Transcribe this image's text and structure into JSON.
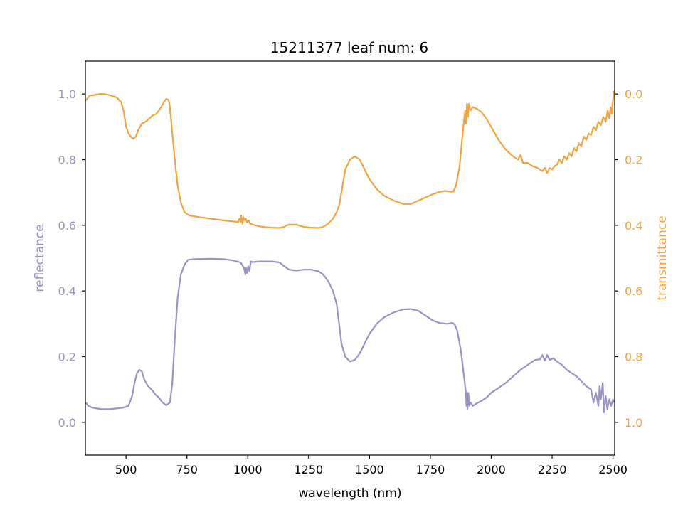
{
  "chart_data": {
    "type": "line",
    "title": "15211377 leaf num: 6",
    "xlabel": "wavelength (nm)",
    "xlim": [
      333,
      2507
    ],
    "xticks": [
      500,
      750,
      1000,
      1250,
      1500,
      1750,
      2000,
      2250,
      2500
    ],
    "left_axis": {
      "label": "reflectance",
      "color": "#9a94c4",
      "ylim": [
        -0.1,
        1.1
      ],
      "ticks": [
        0.0,
        0.2,
        0.4,
        0.6,
        0.8,
        1.0
      ],
      "tick_labels": [
        "0.0",
        "0.2",
        "0.4",
        "0.6",
        "0.8",
        "1.0"
      ]
    },
    "right_axis": {
      "label": "transmittance",
      "color": "#f0a442",
      "ylim": [
        1.1,
        -0.1
      ],
      "ticks": [
        0.0,
        0.2,
        0.4,
        0.6,
        0.8,
        1.0
      ],
      "tick_labels": [
        "0.0",
        "0.2",
        "0.4",
        "0.6",
        "0.8",
        "1.0"
      ]
    },
    "series": [
      {
        "axis": "left",
        "color": "#9a94c4",
        "points": [
          [
            335,
            0.06
          ],
          [
            345,
            0.05
          ],
          [
            360,
            0.045
          ],
          [
            380,
            0.042
          ],
          [
            400,
            0.04
          ],
          [
            430,
            0.04
          ],
          [
            460,
            0.042
          ],
          [
            490,
            0.045
          ],
          [
            510,
            0.05
          ],
          [
            525,
            0.08
          ],
          [
            535,
            0.12
          ],
          [
            545,
            0.15
          ],
          [
            555,
            0.16
          ],
          [
            565,
            0.155
          ],
          [
            575,
            0.13
          ],
          [
            590,
            0.11
          ],
          [
            605,
            0.1
          ],
          [
            620,
            0.085
          ],
          [
            635,
            0.075
          ],
          [
            650,
            0.06
          ],
          [
            665,
            0.052
          ],
          [
            680,
            0.06
          ],
          [
            690,
            0.12
          ],
          [
            700,
            0.25
          ],
          [
            712,
            0.38
          ],
          [
            725,
            0.45
          ],
          [
            740,
            0.48
          ],
          [
            755,
            0.495
          ],
          [
            780,
            0.497
          ],
          [
            850,
            0.498
          ],
          [
            900,
            0.497
          ],
          [
            940,
            0.493
          ],
          [
            970,
            0.487
          ],
          [
            985,
            0.47
          ],
          [
            990,
            0.45
          ],
          [
            993,
            0.47
          ],
          [
            997,
            0.455
          ],
          [
            1002,
            0.475
          ],
          [
            1007,
            0.46
          ],
          [
            1012,
            0.49
          ],
          [
            1020,
            0.488
          ],
          [
            1050,
            0.49
          ],
          [
            1100,
            0.49
          ],
          [
            1130,
            0.487
          ],
          [
            1150,
            0.475
          ],
          [
            1170,
            0.465
          ],
          [
            1200,
            0.462
          ],
          [
            1230,
            0.465
          ],
          [
            1260,
            0.465
          ],
          [
            1290,
            0.46
          ],
          [
            1310,
            0.45
          ],
          [
            1330,
            0.43
          ],
          [
            1350,
            0.4
          ],
          [
            1365,
            0.36
          ],
          [
            1375,
            0.3
          ],
          [
            1385,
            0.24
          ],
          [
            1400,
            0.2
          ],
          [
            1420,
            0.185
          ],
          [
            1440,
            0.19
          ],
          [
            1460,
            0.21
          ],
          [
            1480,
            0.24
          ],
          [
            1500,
            0.27
          ],
          [
            1530,
            0.3
          ],
          [
            1560,
            0.32
          ],
          [
            1600,
            0.335
          ],
          [
            1640,
            0.344
          ],
          [
            1670,
            0.345
          ],
          [
            1700,
            0.34
          ],
          [
            1730,
            0.325
          ],
          [
            1760,
            0.31
          ],
          [
            1790,
            0.302
          ],
          [
            1820,
            0.3
          ],
          [
            1840,
            0.303
          ],
          [
            1850,
            0.298
          ],
          [
            1860,
            0.28
          ],
          [
            1875,
            0.22
          ],
          [
            1888,
            0.14
          ],
          [
            1896,
            0.09
          ],
          [
            1898,
            0.05
          ],
          [
            1900,
            0.09
          ],
          [
            1902,
            0.04
          ],
          [
            1906,
            0.09
          ],
          [
            1910,
            0.05
          ],
          [
            1915,
            0.06
          ],
          [
            1925,
            0.05
          ],
          [
            1940,
            0.058
          ],
          [
            1960,
            0.065
          ],
          [
            1980,
            0.075
          ],
          [
            2000,
            0.09
          ],
          [
            2030,
            0.105
          ],
          [
            2060,
            0.12
          ],
          [
            2090,
            0.14
          ],
          [
            2120,
            0.16
          ],
          [
            2150,
            0.175
          ],
          [
            2180,
            0.19
          ],
          [
            2200,
            0.192
          ],
          [
            2210,
            0.205
          ],
          [
            2220,
            0.188
          ],
          [
            2230,
            0.205
          ],
          [
            2240,
            0.19
          ],
          [
            2255,
            0.195
          ],
          [
            2270,
            0.185
          ],
          [
            2290,
            0.175
          ],
          [
            2310,
            0.16
          ],
          [
            2330,
            0.15
          ],
          [
            2350,
            0.14
          ],
          [
            2370,
            0.125
          ],
          [
            2390,
            0.11
          ],
          [
            2410,
            0.1
          ],
          [
            2420,
            0.06
          ],
          [
            2430,
            0.09
          ],
          [
            2440,
            0.05
          ],
          [
            2445,
            0.11
          ],
          [
            2450,
            0.07
          ],
          [
            2458,
            0.12
          ],
          [
            2463,
            0.03
          ],
          [
            2470,
            0.08
          ],
          [
            2477,
            0.04
          ],
          [
            2485,
            0.07
          ],
          [
            2492,
            0.05
          ],
          [
            2500,
            0.07
          ],
          [
            2505,
            0.06
          ]
        ]
      },
      {
        "axis": "right",
        "color": "#f0a442",
        "points": [
          [
            335,
            0.02
          ],
          [
            350,
            0.005
          ],
          [
            370,
            0.003
          ],
          [
            390,
            0.0
          ],
          [
            410,
            0.0
          ],
          [
            430,
            0.003
          ],
          [
            460,
            0.01
          ],
          [
            480,
            0.025
          ],
          [
            490,
            0.05
          ],
          [
            500,
            0.1
          ],
          [
            510,
            0.12
          ],
          [
            520,
            0.13
          ],
          [
            530,
            0.137
          ],
          [
            540,
            0.13
          ],
          [
            550,
            0.11
          ],
          [
            565,
            0.09
          ],
          [
            580,
            0.085
          ],
          [
            595,
            0.075
          ],
          [
            610,
            0.065
          ],
          [
            625,
            0.06
          ],
          [
            640,
            0.045
          ],
          [
            655,
            0.025
          ],
          [
            665,
            0.015
          ],
          [
            675,
            0.018
          ],
          [
            680,
            0.04
          ],
          [
            690,
            0.12
          ],
          [
            700,
            0.2
          ],
          [
            712,
            0.28
          ],
          [
            725,
            0.33
          ],
          [
            740,
            0.36
          ],
          [
            760,
            0.37
          ],
          [
            800,
            0.375
          ],
          [
            850,
            0.38
          ],
          [
            900,
            0.385
          ],
          [
            940,
            0.388
          ],
          [
            960,
            0.39
          ],
          [
            965,
            0.38
          ],
          [
            970,
            0.39
          ],
          [
            973,
            0.37
          ],
          [
            978,
            0.395
          ],
          [
            982,
            0.375
          ],
          [
            987,
            0.385
          ],
          [
            992,
            0.38
          ],
          [
            997,
            0.39
          ],
          [
            1003,
            0.385
          ],
          [
            1010,
            0.395
          ],
          [
            1030,
            0.4
          ],
          [
            1060,
            0.405
          ],
          [
            1100,
            0.407
          ],
          [
            1130,
            0.408
          ],
          [
            1150,
            0.405
          ],
          [
            1160,
            0.4
          ],
          [
            1170,
            0.398
          ],
          [
            1200,
            0.398
          ],
          [
            1230,
            0.405
          ],
          [
            1260,
            0.407
          ],
          [
            1290,
            0.408
          ],
          [
            1310,
            0.405
          ],
          [
            1330,
            0.395
          ],
          [
            1350,
            0.38
          ],
          [
            1365,
            0.36
          ],
          [
            1375,
            0.34
          ],
          [
            1385,
            0.3
          ],
          [
            1400,
            0.23
          ],
          [
            1420,
            0.2
          ],
          [
            1440,
            0.19
          ],
          [
            1460,
            0.2
          ],
          [
            1480,
            0.23
          ],
          [
            1500,
            0.26
          ],
          [
            1530,
            0.29
          ],
          [
            1560,
            0.31
          ],
          [
            1600,
            0.325
          ],
          [
            1640,
            0.335
          ],
          [
            1670,
            0.335
          ],
          [
            1700,
            0.325
          ],
          [
            1730,
            0.315
          ],
          [
            1760,
            0.305
          ],
          [
            1790,
            0.298
          ],
          [
            1810,
            0.295
          ],
          [
            1830,
            0.298
          ],
          [
            1845,
            0.297
          ],
          [
            1855,
            0.28
          ],
          [
            1870,
            0.22
          ],
          [
            1880,
            0.14
          ],
          [
            1888,
            0.08
          ],
          [
            1893,
            0.05
          ],
          [
            1897,
            0.09
          ],
          [
            1900,
            0.03
          ],
          [
            1904,
            0.07
          ],
          [
            1908,
            0.03
          ],
          [
            1914,
            0.05
          ],
          [
            1925,
            0.04
          ],
          [
            1940,
            0.045
          ],
          [
            1960,
            0.055
          ],
          [
            1980,
            0.075
          ],
          [
            2000,
            0.1
          ],
          [
            2030,
            0.14
          ],
          [
            2060,
            0.17
          ],
          [
            2090,
            0.19
          ],
          [
            2110,
            0.2
          ],
          [
            2120,
            0.185
          ],
          [
            2130,
            0.21
          ],
          [
            2150,
            0.21
          ],
          [
            2170,
            0.22
          ],
          [
            2190,
            0.225
          ],
          [
            2210,
            0.235
          ],
          [
            2220,
            0.225
          ],
          [
            2230,
            0.24
          ],
          [
            2240,
            0.225
          ],
          [
            2250,
            0.23
          ],
          [
            2260,
            0.22
          ],
          [
            2270,
            0.215
          ],
          [
            2280,
            0.2
          ],
          [
            2290,
            0.21
          ],
          [
            2300,
            0.19
          ],
          [
            2310,
            0.2
          ],
          [
            2320,
            0.18
          ],
          [
            2330,
            0.19
          ],
          [
            2340,
            0.165
          ],
          [
            2350,
            0.175
          ],
          [
            2360,
            0.15
          ],
          [
            2370,
            0.16
          ],
          [
            2380,
            0.13
          ],
          [
            2390,
            0.14
          ],
          [
            2400,
            0.12
          ],
          [
            2410,
            0.125
          ],
          [
            2420,
            0.1
          ],
          [
            2430,
            0.11
          ],
          [
            2440,
            0.085
          ],
          [
            2450,
            0.095
          ],
          [
            2460,
            0.07
          ],
          [
            2470,
            0.085
          ],
          [
            2478,
            0.05
          ],
          [
            2485,
            0.075
          ],
          [
            2490,
            0.04
          ],
          [
            2495,
            0.06
          ],
          [
            2500,
            0.02
          ],
          [
            2505,
            -0.01
          ]
        ]
      }
    ]
  }
}
